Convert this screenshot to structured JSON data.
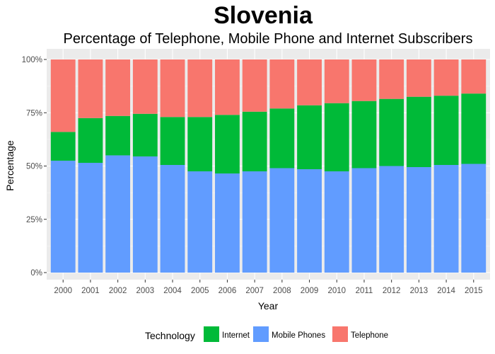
{
  "chart_data": {
    "type": "bar",
    "stacked": true,
    "title": "Slovenia",
    "subtitle": "Percentage of Telephone, Mobile Phone and Internet Subscribers",
    "xlabel": "Year",
    "ylabel": "Percentage",
    "categories": [
      "2000",
      "2001",
      "2002",
      "2003",
      "2004",
      "2005",
      "2006",
      "2007",
      "2008",
      "2009",
      "2010",
      "2011",
      "2012",
      "2013",
      "2014",
      "2015"
    ],
    "ylim": [
      0,
      100
    ],
    "yticks": [
      "0%",
      "25%",
      "50%",
      "75%",
      "100%"
    ],
    "grid": true,
    "legend": {
      "title": "Technology",
      "position": "bottom",
      "items": [
        {
          "name": "Internet",
          "color": "#00BA38"
        },
        {
          "name": "Mobile Phones",
          "color": "#619CFF"
        },
        {
          "name": "Telephone",
          "color": "#F8766D"
        }
      ]
    },
    "series": [
      {
        "name": "Mobile Phones",
        "color": "#619CFF",
        "values": [
          52.5,
          51.5,
          55,
          54.5,
          50.5,
          47.5,
          46.5,
          47.5,
          49,
          48.5,
          47.5,
          49,
          50,
          49.5,
          50.5,
          51
        ]
      },
      {
        "name": "Internet",
        "color": "#00BA38",
        "values": [
          13.5,
          21,
          18.5,
          20,
          22.5,
          25.5,
          27.5,
          28,
          28,
          30,
          32,
          31.5,
          31.5,
          33,
          32.5,
          33
        ]
      },
      {
        "name": "Telephone",
        "color": "#F8766D",
        "values": [
          34,
          27.5,
          26.5,
          25.5,
          27,
          27,
          26,
          24.5,
          23,
          21.5,
          20.5,
          19.5,
          18.5,
          17.5,
          17,
          16
        ]
      }
    ]
  }
}
